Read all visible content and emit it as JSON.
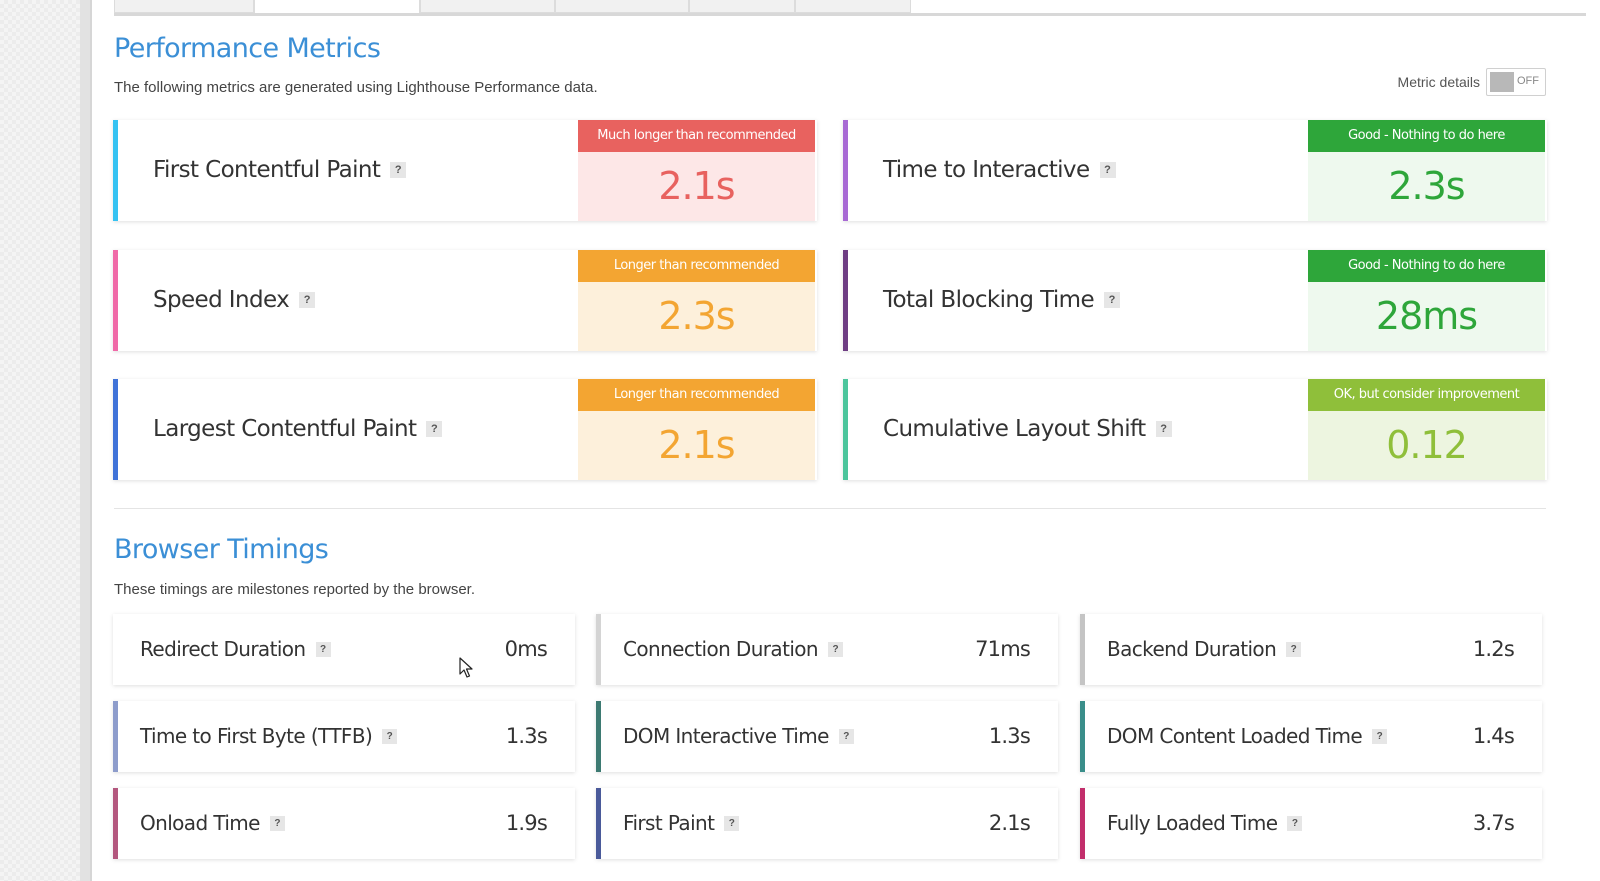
{
  "performance": {
    "title": "Performance Metrics",
    "description": "The following metrics are generated using Lighthouse Performance data.",
    "metric_details_label": "Metric details",
    "toggle_state": "OFF",
    "metrics": [
      {
        "name": "First Contentful Paint",
        "grade_label": "Much longer than recommended",
        "value": "2.1s",
        "accent_color": "#35c2f2",
        "status_color": "#e8625f",
        "status_bg": "#fde7e7"
      },
      {
        "name": "Time to Interactive",
        "grade_label": "Good - Nothing to do here",
        "value": "2.3s",
        "accent_color": "#a86ad4",
        "status_color": "#2ea63a",
        "status_bg": "#eef9ee"
      },
      {
        "name": "Speed Index",
        "grade_label": "Longer than recommended",
        "value": "2.3s",
        "accent_color": "#f06aa8",
        "status_color": "#f3a532",
        "status_bg": "#fdf0db"
      },
      {
        "name": "Total Blocking Time",
        "grade_label": "Good - Nothing to do here",
        "value": "28ms",
        "accent_color": "#6e3d83",
        "status_color": "#2ea63a",
        "status_bg": "#eef9ee"
      },
      {
        "name": "Largest Contentful Paint",
        "grade_label": "Longer than recommended",
        "value": "2.1s",
        "accent_color": "#3f72d8",
        "status_color": "#f3a532",
        "status_bg": "#fdf0db"
      },
      {
        "name": "Cumulative Layout Shift",
        "grade_label": "OK, but consider improvement",
        "value": "0.12",
        "accent_color": "#4cc59c",
        "status_color": "#8fbf3a",
        "status_bg": "#edf5e0"
      }
    ]
  },
  "browser": {
    "title": "Browser Timings",
    "description": "These timings are milestones reported by the browser.",
    "timings": [
      {
        "name": "Redirect Duration",
        "value": "0ms",
        "accent_color": "#ffffff"
      },
      {
        "name": "Connection Duration",
        "value": "71ms",
        "accent_color": "#d4d4d4"
      },
      {
        "name": "Backend Duration",
        "value": "1.2s",
        "accent_color": "#c4c4c4"
      },
      {
        "name": "Time to First Byte (TTFB)",
        "value": "1.3s",
        "accent_color": "#8d9ccb"
      },
      {
        "name": "DOM Interactive Time",
        "value": "1.3s",
        "accent_color": "#3d7a72"
      },
      {
        "name": "DOM Content Loaded Time",
        "value": "1.4s",
        "accent_color": "#3a8e8a"
      },
      {
        "name": "Onload Time",
        "value": "1.9s",
        "accent_color": "#b3577e"
      },
      {
        "name": "First Paint",
        "value": "2.1s",
        "accent_color": "#4a5a9a"
      },
      {
        "name": "Fully Loaded Time",
        "value": "3.7s",
        "accent_color": "#c22e6b"
      }
    ]
  },
  "help_glyph": "?",
  "icons": {
    "help": "question-mark-icon",
    "cursor": "mouse-pointer-icon"
  }
}
